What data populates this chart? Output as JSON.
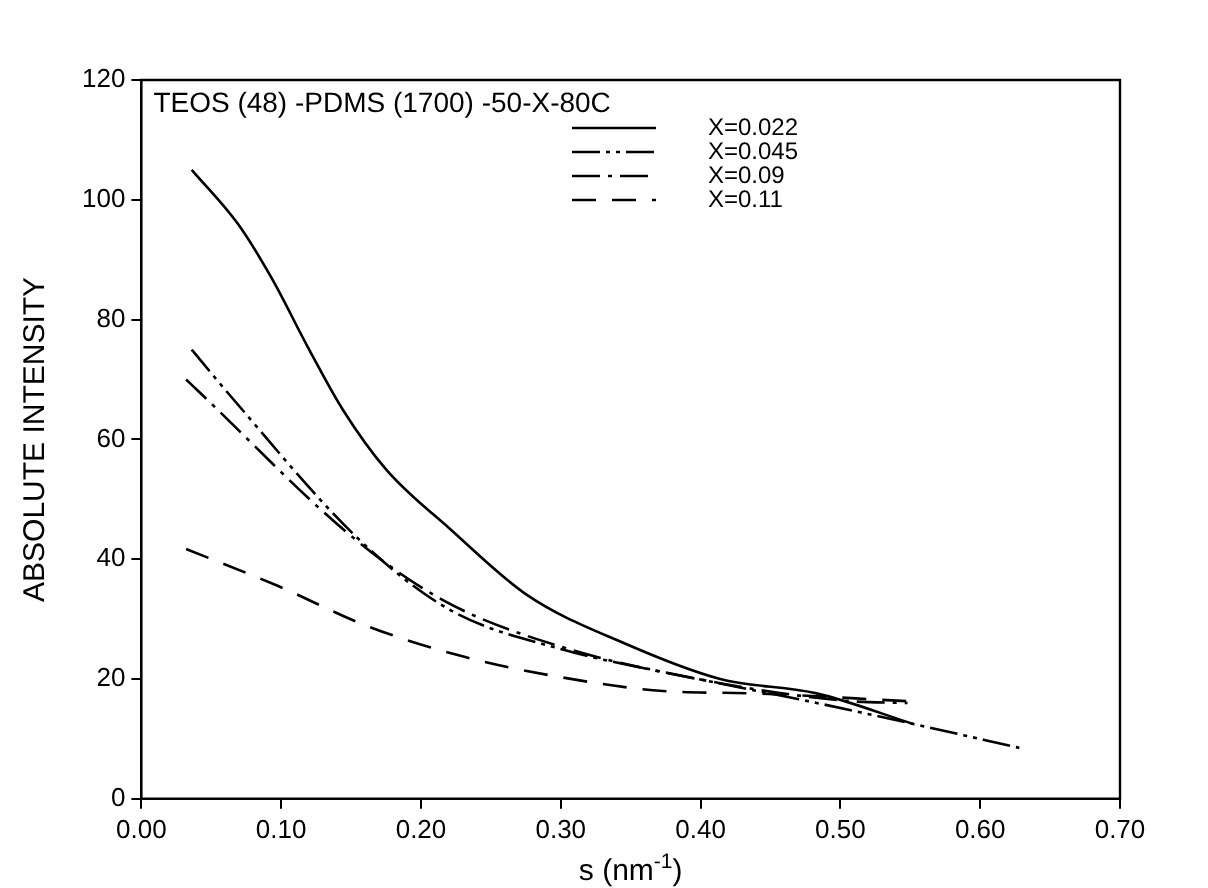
{
  "chart_data": {
    "type": "line",
    "title": "TEOS (48) -PDMS (1700) -50-X-80C",
    "xlabel": "s (nm$^{-1}$)",
    "ylabel": "ABSOLUTE INTENSITY",
    "xlim": [
      0,
      0.7
    ],
    "xticks": [
      {
        "value": 0,
        "label": "0.00"
      },
      {
        "value": 0.1,
        "label": "0.10"
      },
      {
        "value": 0.2,
        "label": "0.20"
      },
      {
        "value": 0.3,
        "label": "0.30"
      },
      {
        "value": 0.4,
        "label": "0.40"
      },
      {
        "value": 0.5,
        "label": "0.50"
      },
      {
        "value": 0.6,
        "label": "0.60"
      },
      {
        "value": 0.7,
        "label": "0.70"
      }
    ],
    "ylim": [
      0,
      120
    ],
    "yticks": [
      0,
      20,
      40,
      60,
      80,
      100,
      120
    ],
    "grid": false,
    "legend": "top right",
    "marker": "none",
    "series": [
      {
        "name": "X=0.022",
        "color": "#000000",
        "line_style": "solid",
        "x": [
          0.036,
          0.069,
          0.093,
          0.12,
          0.144,
          0.175,
          0.221,
          0.276,
          0.345,
          0.414,
          0.483,
          0.552
        ],
        "values": [
          105,
          96,
          87,
          75,
          65,
          55,
          45,
          34,
          26,
          20,
          17.6,
          12.5
        ]
      },
      {
        "name": "X=0.045",
        "color": "#000000",
        "line_style": "dashdotdot",
        "x": [
          0.036,
          0.061,
          0.157,
          0.221,
          0.3,
          0.392,
          0.483,
          0.552,
          0.628
        ],
        "values": [
          75,
          68,
          43,
          31.5,
          25,
          20.3,
          16,
          12.5,
          8.5
        ]
      },
      {
        "name": "X=0.09",
        "color": "#000000",
        "line_style": "dashdot",
        "x": [
          0.032,
          0.041,
          0.152,
          0.217,
          0.3,
          0.414,
          0.507,
          0.548
        ],
        "values": [
          70,
          68,
          43.5,
          33,
          25.4,
          19.3,
          16.3,
          16
        ]
      },
      {
        "name": "X=0.11",
        "color": "#000000",
        "line_style": "dashed",
        "x": [
          0.032,
          0.097,
          0.162,
          0.231,
          0.3,
          0.373,
          0.437,
          0.548
        ],
        "values": [
          41.7,
          35.6,
          28.8,
          23.7,
          20.3,
          18,
          17.6,
          16.3
        ]
      }
    ]
  }
}
